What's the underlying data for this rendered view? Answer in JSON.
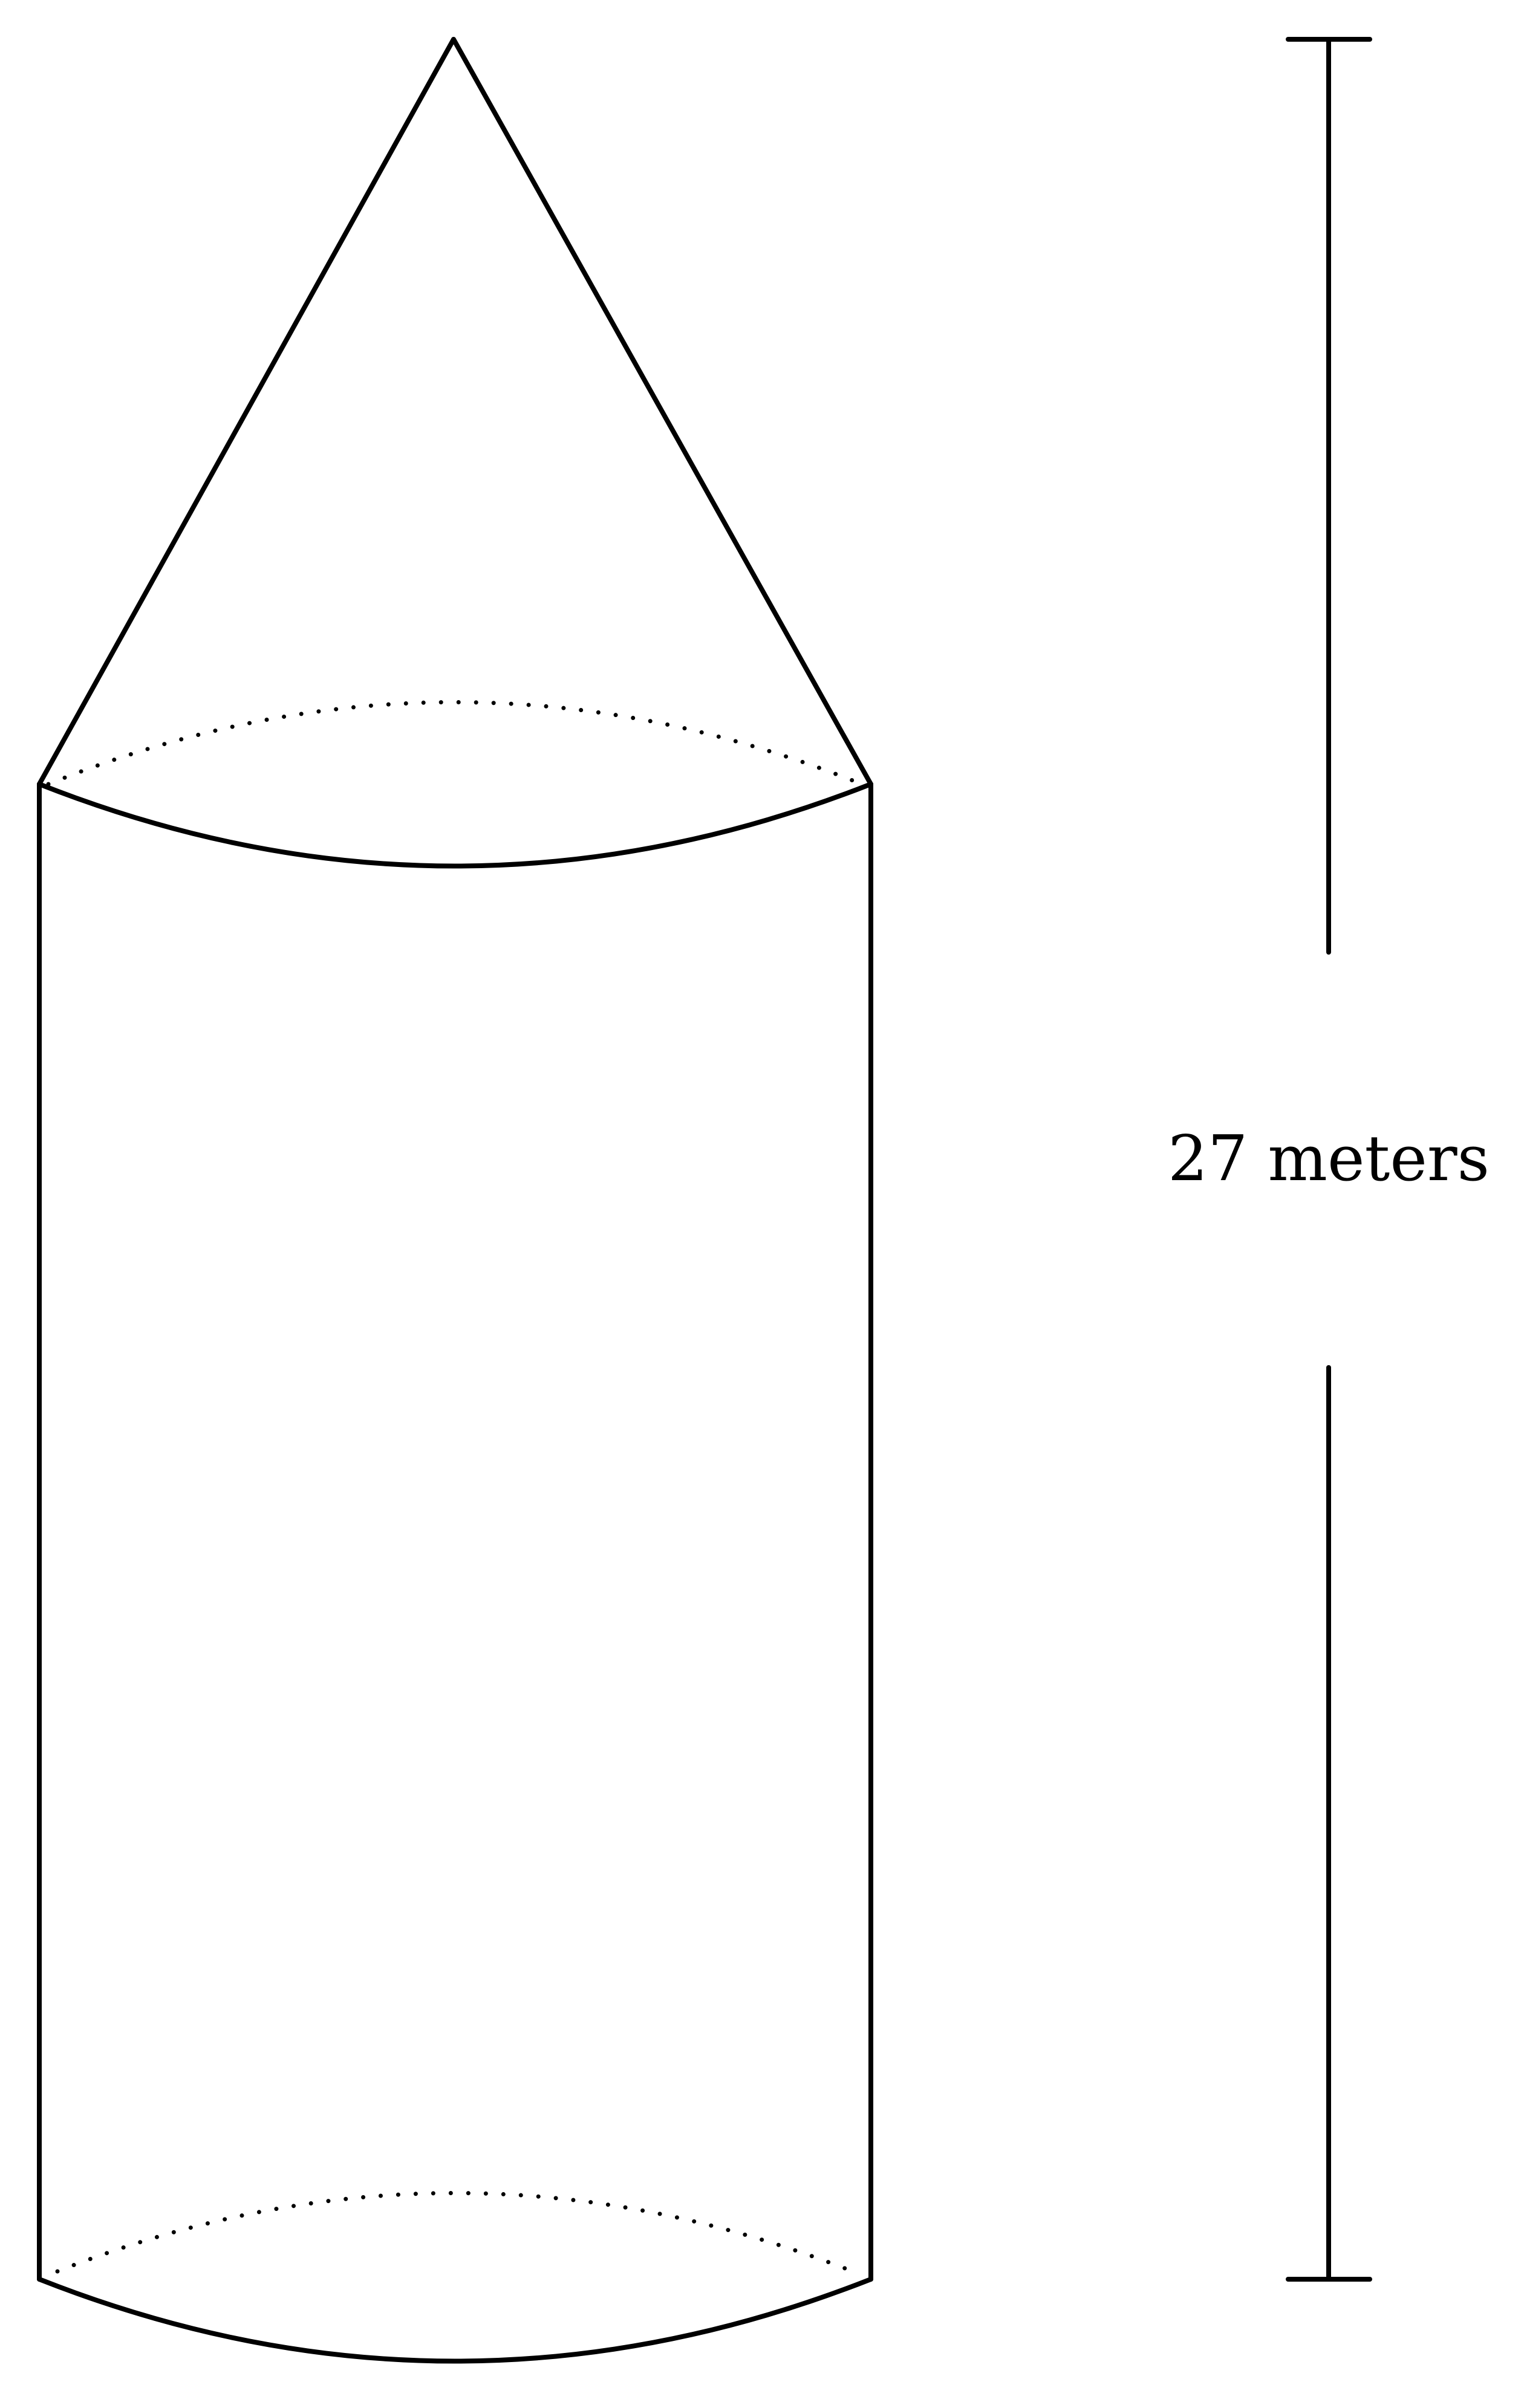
{
  "figure": {
    "shape": "cylinder topped by a cone",
    "height_label": "27 meters",
    "stroke_color": "#000000",
    "background_color": "#ffffff"
  }
}
